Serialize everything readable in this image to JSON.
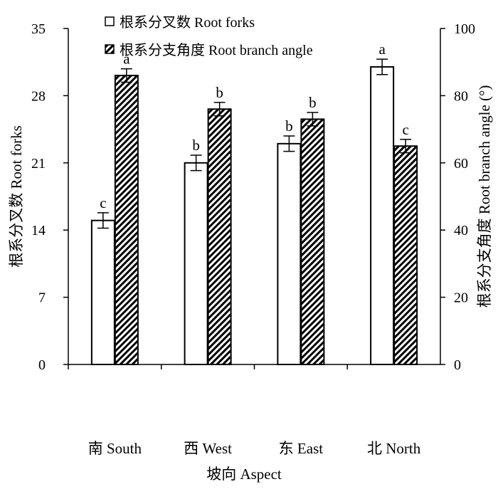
{
  "chart_data": {
    "type": "bar",
    "categories": [
      "南 South",
      "西 West",
      "东 East",
      "北 North"
    ],
    "series": [
      {
        "name": "根系分叉数 Root forks",
        "axis": "left",
        "pattern": "open",
        "values": [
          15.0,
          21.0,
          23.0,
          31.0
        ],
        "errors": [
          0.8,
          0.8,
          0.8,
          0.8
        ],
        "letters": [
          "c",
          "b",
          "b",
          "a"
        ]
      },
      {
        "name": "根系分支角度 Root branch angle",
        "axis": "right",
        "pattern": "diagonal-hatch",
        "values": [
          86.0,
          76.0,
          73.0,
          65.0
        ],
        "errors": [
          2.0,
          2.0,
          2.0,
          2.0
        ],
        "letters": [
          "a",
          "b",
          "b",
          "c"
        ]
      }
    ],
    "xlabel": "坡向 Aspect",
    "ylabel_left": "根系分叉数 Root forks",
    "ylabel_right": "根系分支角度 Root branch angle (°)",
    "ylim_left": [
      0,
      35
    ],
    "yticks_left": [
      "0",
      "7",
      "14",
      "21",
      "28",
      "35"
    ],
    "ylim_right": [
      0,
      100
    ],
    "yticks_right": [
      "0",
      "20",
      "40",
      "60",
      "80",
      "100"
    ],
    "grid": false,
    "legend_position": "top-left"
  }
}
